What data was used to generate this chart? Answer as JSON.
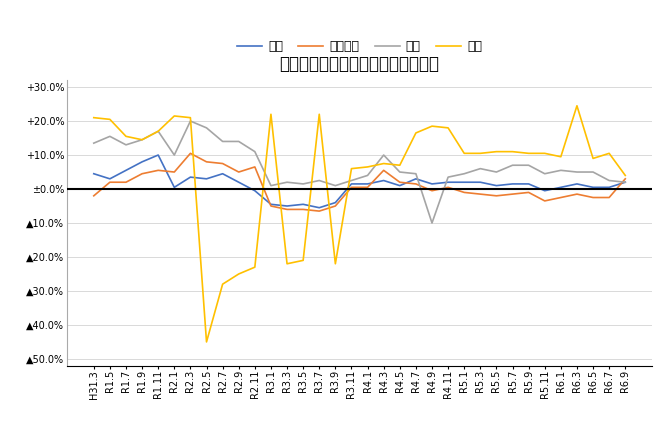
{
  "title": "米消費量・前年同月比増減率の推移",
  "legend_labels": [
    "合計",
    "家庭内食",
    "中食",
    "外食"
  ],
  "line_colors": [
    "#4472C4",
    "#ED7D31",
    "#A5A5A5",
    "#FFC000"
  ],
  "x_labels": [
    "H31.3",
    "R1.5",
    "R1.7",
    "R1.9",
    "R1.11",
    "R2.1",
    "R2.3",
    "R2.5",
    "R2.7",
    "R2.9",
    "R2.11",
    "R3.1",
    "R3.3",
    "R3.5",
    "R3.7",
    "R3.9",
    "R3.11",
    "R4.1",
    "R4.3",
    "R4.5",
    "R4.7",
    "R4.9",
    "R4.11",
    "R5.1",
    "R5.3",
    "R5.5",
    "R5.7",
    "R5.9",
    "R5.11",
    "R6.1",
    "R6.3",
    "R6.5",
    "R6.7",
    "R6.9"
  ],
  "series": {
    "合計": [
      4.5,
      3.0,
      5.5,
      8.0,
      10.0,
      0.5,
      3.5,
      3.0,
      4.5,
      2.0,
      -0.5,
      -4.5,
      -5.0,
      -4.5,
      -5.5,
      -4.0,
      1.5,
      1.5,
      2.5,
      1.0,
      3.0,
      1.5,
      2.0,
      2.0,
      2.0,
      1.0,
      1.5,
      1.5,
      -0.5,
      0.5,
      1.5,
      0.5,
      0.5,
      2.0
    ],
    "家庭内食": [
      -2.0,
      2.0,
      2.0,
      4.5,
      5.5,
      5.0,
      10.5,
      8.0,
      7.5,
      5.0,
      6.5,
      -5.0,
      -6.0,
      -6.0,
      -6.5,
      -5.0,
      0.5,
      0.5,
      5.5,
      2.0,
      1.5,
      -0.5,
      0.5,
      -1.0,
      -1.5,
      -2.0,
      -1.5,
      -1.0,
      -3.5,
      -2.5,
      -1.5,
      -2.5,
      -2.5,
      3.0
    ],
    "中食": [
      13.5,
      15.5,
      13.0,
      14.5,
      17.0,
      10.0,
      20.0,
      18.0,
      14.0,
      14.0,
      11.0,
      1.0,
      2.0,
      1.5,
      2.5,
      1.0,
      2.5,
      4.0,
      10.0,
      5.0,
      4.5,
      -10.0,
      3.5,
      4.5,
      6.0,
      5.0,
      7.0,
      7.0,
      4.5,
      5.5,
      5.0,
      5.0,
      2.5,
      2.0
    ],
    "外食": [
      21.0,
      20.5,
      15.5,
      14.5,
      17.0,
      21.5,
      21.0,
      -45.0,
      -28.0,
      -25.0,
      -23.0,
      22.0,
      -22.0,
      -21.0,
      22.0,
      -22.0,
      6.0,
      6.5,
      7.5,
      7.0,
      16.5,
      18.5,
      18.0,
      10.5,
      10.5,
      11.0,
      11.0,
      10.5,
      10.5,
      9.5,
      24.5,
      9.0,
      10.5,
      4.0
    ]
  },
  "ylim": [
    -52,
    32
  ],
  "yticks": [
    30,
    20,
    10,
    0,
    -10,
    -20,
    -30,
    -40,
    -50
  ],
  "ytick_labels": [
    "+30.0%",
    "+20.0%",
    "+10.0%",
    "±0.0%",
    "▲10.0%",
    "▲20.0%",
    "▲30.0%",
    "▲40.0%",
    "▲50.0%"
  ],
  "background_color": "#FFFFFF",
  "grid_color": "#D9D9D9",
  "zero_line_color": "#000000",
  "title_fontsize": 12,
  "tick_fontsize": 7,
  "legend_fontsize": 9
}
